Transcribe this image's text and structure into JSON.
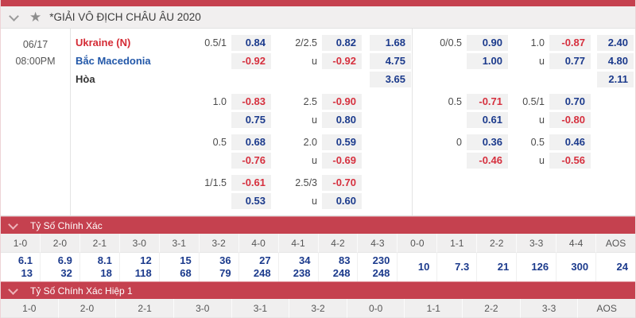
{
  "league": {
    "title": "*GIẢI VÔ ĐỊCH CHÂU ÂU 2020"
  },
  "match": {
    "date": "06/17",
    "time": "08:00PM",
    "home": "Ukraine (N)",
    "away": "Bắc Macedonia",
    "draw": "Hòa"
  },
  "colors": {
    "accent_red": "#c5414f",
    "odds_blue": "#1b3a8c",
    "odds_red": "#d6303e"
  },
  "odds": {
    "ft": [
      {
        "hdp": "0.5/1",
        "hdp_home": "0.84",
        "hdp_away": "-0.92",
        "ou": "2/2.5",
        "over": "0.82",
        "u": "u",
        "under": "-0.92",
        "x_home": "1.68",
        "x_away": "4.75",
        "x_draw": "3.65"
      },
      {
        "hdp": "1.0",
        "hdp_home": "-0.83",
        "hdp_away": "0.75",
        "ou": "2.5",
        "over": "-0.90",
        "u": "u",
        "under": "0.80"
      },
      {
        "hdp": "0.5",
        "hdp_home": "0.68",
        "hdp_away": "-0.76",
        "ou": "2.0",
        "over": "0.59",
        "u": "u",
        "under": "-0.69"
      },
      {
        "hdp": "1/1.5",
        "hdp_home": "-0.61",
        "hdp_away": "0.53",
        "ou": "2.5/3",
        "over": "-0.70",
        "u": "u",
        "under": "0.60"
      }
    ],
    "fh": [
      {
        "hdp": "0/0.5",
        "hdp_home": "0.90",
        "hdp_away": "1.00",
        "ou": "1.0",
        "over": "-0.87",
        "u": "u",
        "under": "0.77",
        "x_home": "2.40",
        "x_away": "4.80",
        "x_draw": "2.11"
      },
      {
        "hdp": "0.5",
        "hdp_home": "-0.71",
        "hdp_away": "0.61",
        "ou": "0.5/1",
        "over": "0.70",
        "u": "u",
        "under": "-0.80"
      },
      {
        "hdp": "0",
        "hdp_home": "0.36",
        "hdp_away": "-0.46",
        "ou": "0.5",
        "over": "0.46",
        "u": "u",
        "under": "-0.56"
      }
    ]
  },
  "correct_score": {
    "title": "Tỷ Số Chính Xác",
    "cols": [
      {
        "label": "1-0",
        "v1": "6.1",
        "v2": "13"
      },
      {
        "label": "2-0",
        "v1": "6.9",
        "v2": "32"
      },
      {
        "label": "2-1",
        "v1": "8.1",
        "v2": "18"
      },
      {
        "label": "3-0",
        "v1": "12",
        "v2": "118"
      },
      {
        "label": "3-1",
        "v1": "15",
        "v2": "68"
      },
      {
        "label": "3-2",
        "v1": "36",
        "v2": "79"
      },
      {
        "label": "4-0",
        "v1": "27",
        "v2": "248"
      },
      {
        "label": "4-1",
        "v1": "34",
        "v2": "238"
      },
      {
        "label": "4-2",
        "v1": "83",
        "v2": "248"
      },
      {
        "label": "4-3",
        "v1": "230",
        "v2": "248"
      },
      {
        "label": "0-0",
        "v1": "10"
      },
      {
        "label": "1-1",
        "v1": "7.3"
      },
      {
        "label": "2-2",
        "v1": "21"
      },
      {
        "label": "3-3",
        "v1": "126"
      },
      {
        "label": "4-4",
        "v1": "300"
      },
      {
        "label": "AOS",
        "v1": "24"
      }
    ]
  },
  "correct_score_h1": {
    "title": "Tỷ Số Chính Xác Hiệp 1",
    "cols": [
      "1-0",
      "2-0",
      "2-1",
      "3-0",
      "3-1",
      "3-2",
      "0-0",
      "1-1",
      "2-2",
      "3-3",
      "AOS"
    ]
  }
}
